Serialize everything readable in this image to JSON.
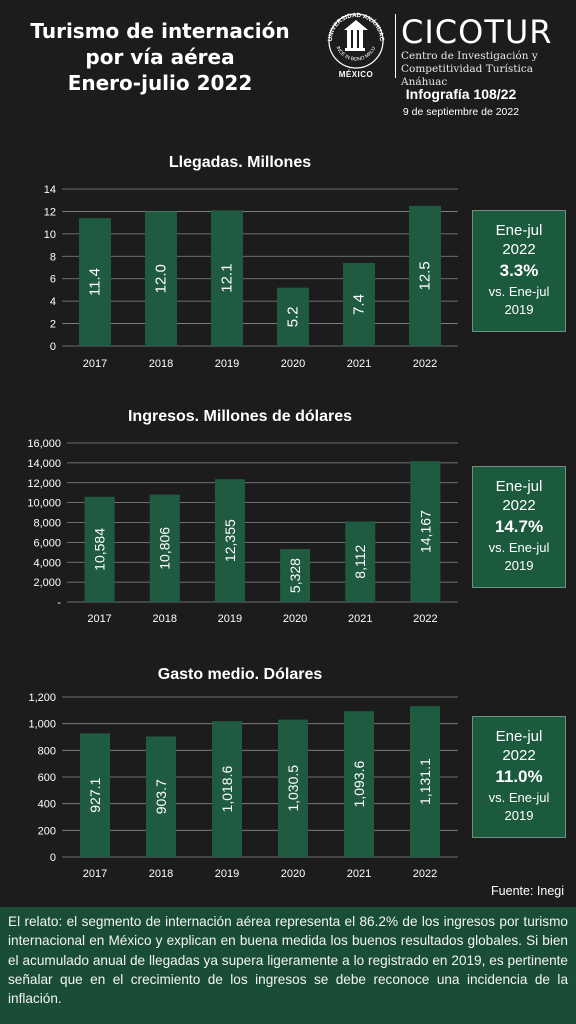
{
  "header": {
    "title_lines": [
      "Turismo de internación",
      "por vía aérea",
      "Enero-julio 2022"
    ],
    "logo_university": "UNIVERSIDAD ANÁHUAC",
    "logo_motto": "VINCE IN BONO MALUM",
    "logo_country": "MÉXICO",
    "brand": "CICOTUR",
    "brand_sub_1": "Centro de Investigación y",
    "brand_sub_2": "Competitividad Turística Anáhuac",
    "infografia": "Infografía 108/22",
    "date": "9 de septiembre de 2022"
  },
  "colors": {
    "bar": "#1f5b40",
    "background": "#1c1c1c",
    "box": "#1c5a3e",
    "story": "#1a4d36"
  },
  "chart_data": [
    {
      "type": "bar",
      "title": "Llegadas. Millones",
      "categories": [
        "2017",
        "2018",
        "2019",
        "2020",
        "2021",
        "2022"
      ],
      "values": [
        11.4,
        12.0,
        12.1,
        5.2,
        7.4,
        12.5
      ],
      "labels": [
        "11.4",
        "12.0",
        "12.1",
        "5.2",
        "7.4",
        "12.5"
      ],
      "yticks": [
        0,
        2,
        4,
        6,
        8,
        10,
        12,
        14
      ],
      "ytick_labels": [
        "0",
        "2",
        "4",
        "6",
        "8",
        "10",
        "12",
        "14"
      ],
      "ylim": [
        0,
        14
      ],
      "grid": true,
      "summary": {
        "head_1": "Ene-jul",
        "head_2": "2022",
        "pct": "3.3%",
        "vs_1": "vs. Ene-jul",
        "vs_2": "2019"
      }
    },
    {
      "type": "bar",
      "title": "Ingresos. Millones de dólares",
      "categories": [
        "2017",
        "2018",
        "2019",
        "2020",
        "2021",
        "2022"
      ],
      "values": [
        10584,
        10806,
        12355,
        5328,
        8112,
        14167
      ],
      "labels": [
        "10,584",
        "10,806",
        "12,355",
        "5,328",
        "8,112",
        "14,167"
      ],
      "yticks": [
        0,
        2000,
        4000,
        6000,
        8000,
        10000,
        12000,
        14000,
        16000
      ],
      "ytick_labels": [
        "-",
        "2,000",
        "4,000",
        "6,000",
        "8,000",
        "10,000",
        "12,000",
        "14,000",
        "16,000"
      ],
      "ylim": [
        0,
        16000
      ],
      "grid": true,
      "summary": {
        "head_1": "Ene-jul",
        "head_2": "2022",
        "pct": "14.7%",
        "vs_1": "vs. Ene-jul",
        "vs_2": "2019"
      }
    },
    {
      "type": "bar",
      "title": "Gasto medio. Dólares",
      "categories": [
        "2017",
        "2018",
        "2019",
        "2020",
        "2021",
        "2022"
      ],
      "values": [
        927.1,
        903.7,
        1018.6,
        1030.5,
        1093.6,
        1131.1
      ],
      "labels": [
        "927.1",
        "903.7",
        "1,018.6",
        "1,030.5",
        "1,093.6",
        "1,131.1"
      ],
      "yticks": [
        0,
        200,
        400,
        600,
        800,
        1000,
        1200
      ],
      "ytick_labels": [
        "0",
        "200",
        "400",
        "600",
        "800",
        "1,000",
        "1,200"
      ],
      "ylim": [
        0,
        1200
      ],
      "grid": true,
      "summary": {
        "head_1": "Ene-jul",
        "head_2": "2022",
        "pct": "11.0%",
        "vs_1": "vs. Ene-jul",
        "vs_2": "2019"
      }
    }
  ],
  "source": "Fuente: Inegi",
  "story": "El relato: el segmento de internación aérea representa el 86.2% de los ingresos por turismo internacional en México y explican en buena medida los buenos resultados globales. Si bien el acumulado anual de llegadas ya supera ligeramente a lo registrado en 2019, es pertinente señalar que en el crecimiento de los ingresos se debe reconoce una incidencia de la inflación."
}
